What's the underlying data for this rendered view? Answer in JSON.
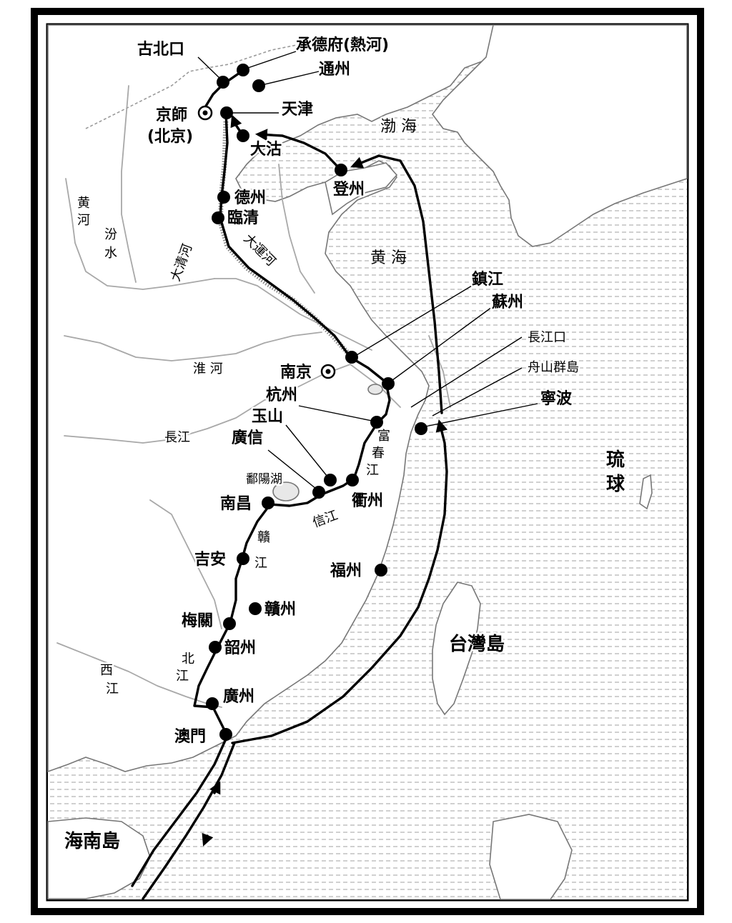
{
  "labels": {
    "gubeikou": "古北口",
    "chengde": "承德府(熱河)",
    "tongzhou": "通州",
    "jingshi": "京師",
    "beijing": "(北京)",
    "tianjin": "天津",
    "dagu": "大沽",
    "dengzhou": "登州",
    "dezhou": "德州",
    "linqing": "臨清",
    "zhenjiang": "鎮江",
    "suzhou": "蘇州",
    "changjiangkou": "長江口",
    "zhoushan": "舟山群島",
    "ningbo": "寧波",
    "nanjing": "南京",
    "hangzhou": "杭州",
    "yushan": "玉山",
    "guangxin": "廣信",
    "quzhou": "衢州",
    "nanchang": "南昌",
    "jian": "吉安",
    "ganzhou": "贛州",
    "meiguan": "梅關",
    "shaozhou": "韶州",
    "guangzhou": "廣州",
    "aomen": "澳門",
    "fuzhou": "福州"
  },
  "regions": {
    "bohai": "渤 海",
    "huanghai": "黄 海",
    "taiwan": "台灣島",
    "hainan": "海南島",
    "liuqiu_1": "琉",
    "liuqiu_2": "球"
  },
  "rivers": {
    "huanghe": "黄河",
    "fenshui_1": "汾",
    "fenshui_2": "水",
    "daqinghe": "大清河",
    "dayunhe": "大運河",
    "huaihe": "淮 河",
    "changjiang": "長江",
    "fuchunjiang_1": "富",
    "fuchunjiang_2": "春",
    "fuchunjiang_3": "江",
    "poyanghu": "鄱陽湖",
    "xinjiang": "信江",
    "ganjiang_1": "贛",
    "ganjiang_2": "江",
    "beijiang_1": "北",
    "beijiang_2": "江",
    "xijiang_1": "西",
    "xijiang_2": "江"
  },
  "colors": {
    "route": "#000000",
    "land": "#ffffff",
    "sea_lines": "#9a9a9a",
    "rivers": "#a8a8a8"
  }
}
